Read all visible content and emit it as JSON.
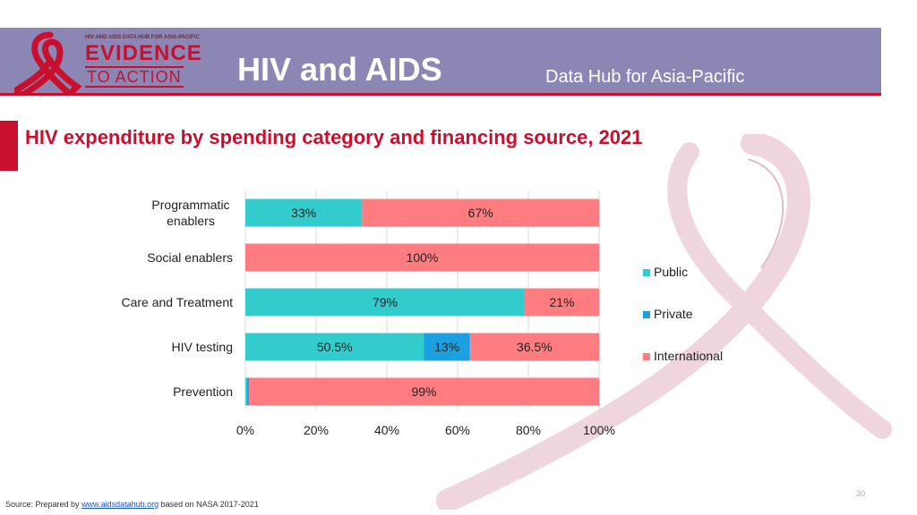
{
  "header": {
    "logo_small_text": "HIV AND AIDS DATA HUB FOR ASIA-PACIFIC",
    "logo_line1": "EVIDENCE",
    "logo_line2": "TO ACTION",
    "title": "HIV and AIDS",
    "subtitle": "Data Hub for Asia-Pacific"
  },
  "colors": {
    "header_bg": "#8c86b5",
    "accent_red": "#c8102e",
    "public": "#33cccc",
    "private": "#1ba1e2",
    "international": "#ff7c80"
  },
  "chart_data": {
    "type": "bar",
    "orientation": "horizontal",
    "stacked": "100%",
    "title": "HIV expenditure by spending category and financing source, 2021",
    "categories": [
      "Programmatic enablers",
      "Social enablers",
      "Care and Treatment",
      "HIV testing",
      "Prevention"
    ],
    "series": [
      {
        "name": "Public",
        "color": "#33cccc",
        "values": [
          33,
          0,
          79,
          50.5,
          0.5
        ],
        "labels": [
          "33%",
          "",
          "79%",
          "50.5%",
          ""
        ]
      },
      {
        "name": "Private",
        "color": "#1ba1e2",
        "values": [
          0,
          0,
          0,
          13,
          0.5
        ],
        "labels": [
          "",
          "",
          "",
          "13%",
          ""
        ]
      },
      {
        "name": "International",
        "color": "#ff7c80",
        "values": [
          67,
          100,
          21,
          36.5,
          99
        ],
        "labels": [
          "67%",
          "100%",
          "21%",
          "36.5%",
          "99%"
        ]
      }
    ],
    "xlim": [
      0,
      100
    ],
    "xticks": [
      "0%",
      "20%",
      "40%",
      "60%",
      "80%",
      "100%"
    ],
    "grid": true,
    "legend_position": "right"
  },
  "footer": {
    "source_prefix": "Source: Prepared by ",
    "source_link": "www.aidsdatahub.org",
    "source_suffix": " based on NASA 2017-2021",
    "page_number": "30"
  }
}
